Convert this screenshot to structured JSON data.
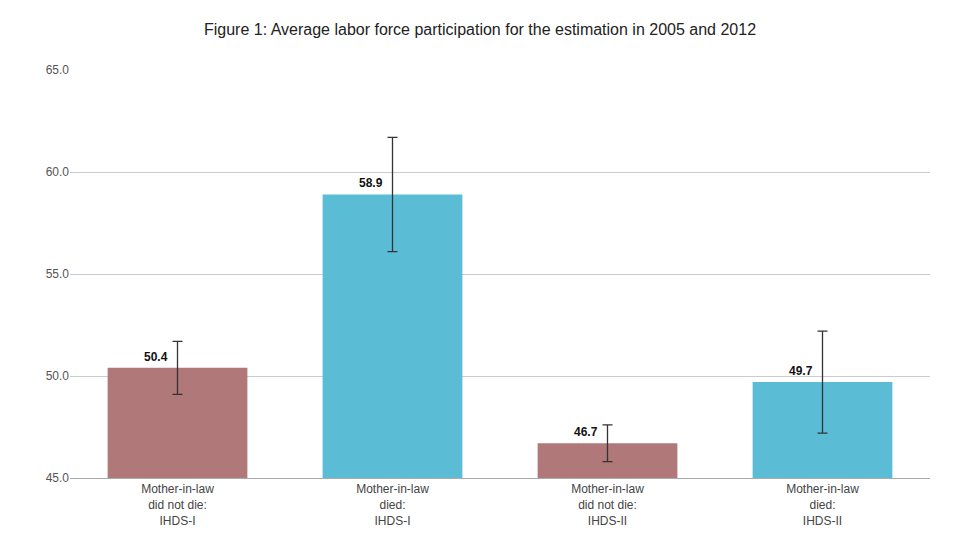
{
  "chart_data": {
    "type": "bar",
    "title": "Figure 1: Average labor force participation for the estimation in 2005 and 2012",
    "categories": [
      "Mother-in-law\ndid not die:\nIHDS-I",
      "Mother-in-law\ndied:\nIHDS-I",
      "Mother-in-law\ndid not die:\nIHDS-II",
      "Mother-in-law\ndied:\nIHDS-II"
    ],
    "values": [
      50.4,
      58.9,
      46.7,
      49.7
    ],
    "errors": [
      1.3,
      2.8,
      0.9,
      2.5
    ],
    "colors": [
      "#b07878",
      "#5bbcd6",
      "#b07878",
      "#5bbcd6"
    ],
    "ylim": [
      45.0,
      65.0
    ],
    "yticks": [
      {
        "value": 45,
        "label": "45.0"
      },
      {
        "value": 50,
        "label": "50.0"
      },
      {
        "value": 55,
        "label": "55.0"
      },
      {
        "value": 60,
        "label": "60.0"
      },
      {
        "value": 65,
        "label": "65.0"
      }
    ],
    "grid": true,
    "data_labels": true
  }
}
